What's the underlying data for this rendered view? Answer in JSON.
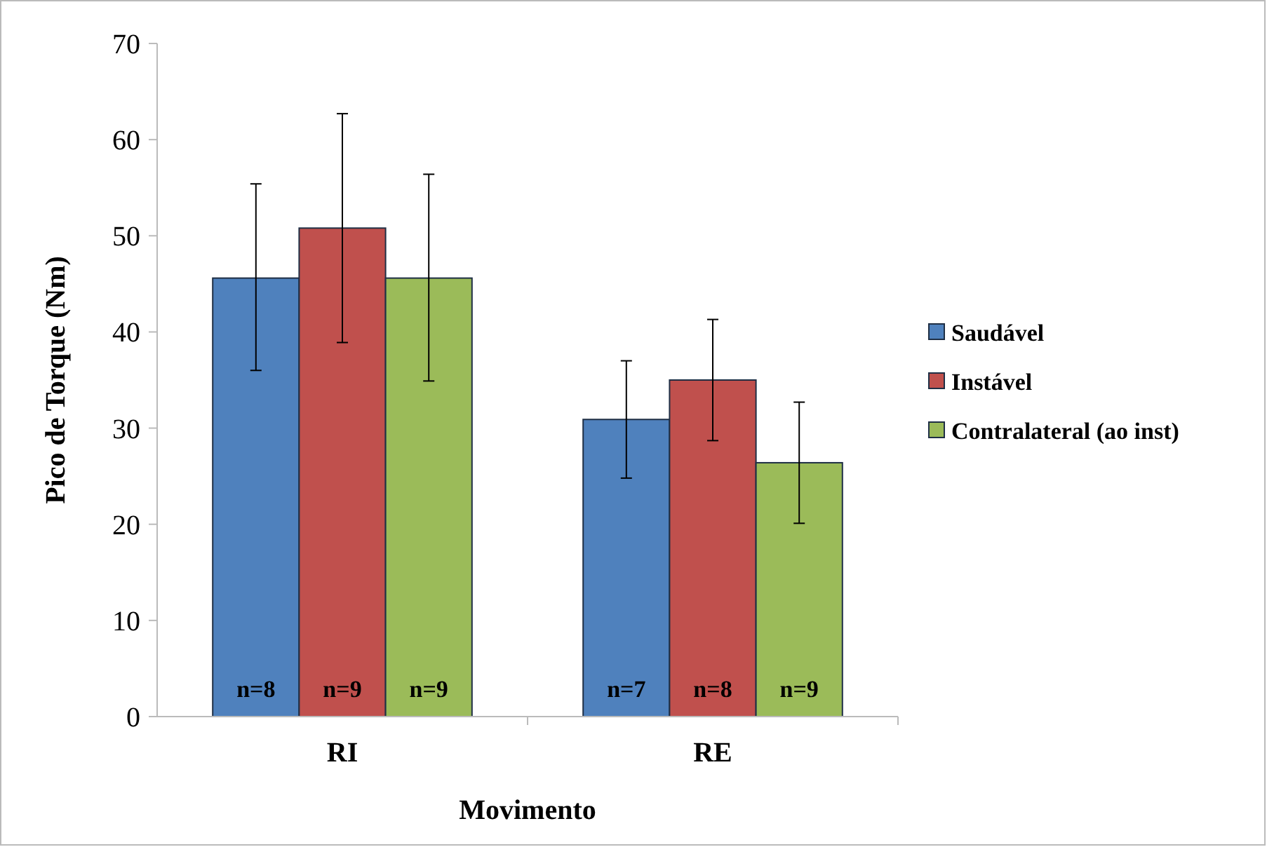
{
  "chart_data": {
    "type": "bar",
    "xlabel": "Movimento",
    "ylabel": "Pico de Torque (Nm)",
    "categories": [
      "RI",
      "RE"
    ],
    "series": [
      {
        "name": "Saudável",
        "color": "#4f81bd",
        "values": [
          45.6,
          30.9
        ],
        "errors": [
          [
            36.0,
            55.4
          ],
          [
            24.8,
            37.0
          ]
        ]
      },
      {
        "name": "Instável",
        "color": "#c0504d",
        "values": [
          50.8,
          35.0
        ],
        "errors": [
          [
            38.9,
            62.7
          ],
          [
            28.7,
            41.3
          ]
        ]
      },
      {
        "name": "Contralateral (ao inst)",
        "color": "#9bbb59",
        "values": [
          45.6,
          26.4
        ],
        "errors": [
          [
            34.9,
            56.4
          ],
          [
            20.1,
            32.7
          ]
        ]
      }
    ],
    "annotations": [
      "n=8",
      "n=9",
      "n=9",
      "n=7",
      "n=8",
      "n=9"
    ],
    "ylim": [
      0,
      70
    ],
    "yticks": [
      0,
      10,
      20,
      30,
      40,
      50,
      60,
      70
    ],
    "grid": false,
    "legend": "right"
  }
}
